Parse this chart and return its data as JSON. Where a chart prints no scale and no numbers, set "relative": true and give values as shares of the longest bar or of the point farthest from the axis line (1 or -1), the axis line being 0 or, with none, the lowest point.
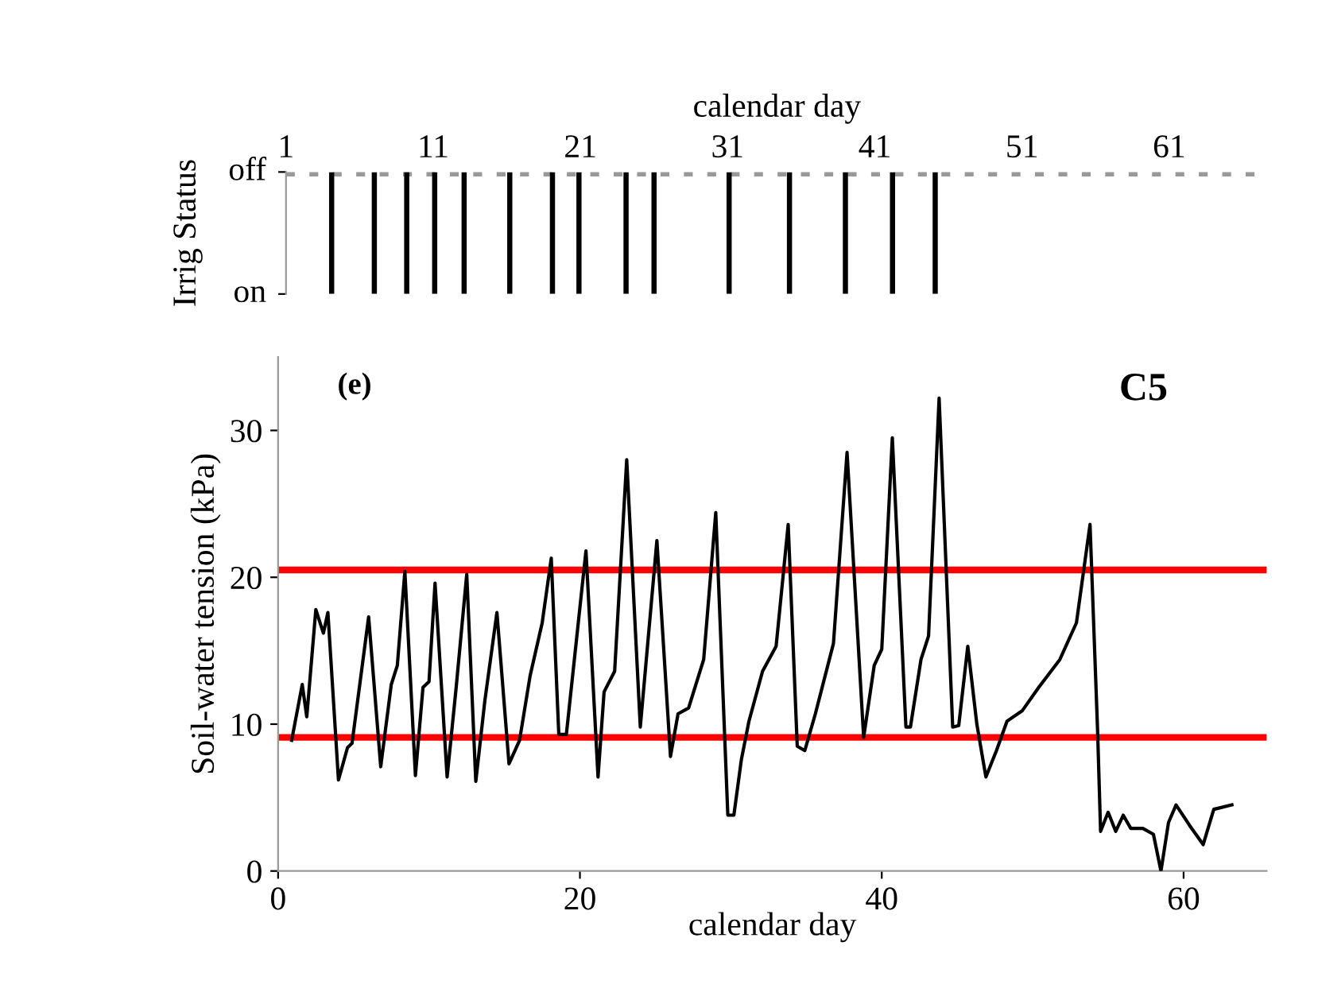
{
  "chart_data": [
    {
      "type": "bar",
      "xlabel": "calendar day",
      "ylabel": "Irrig Status",
      "x": [
        4.1,
        7.0,
        9.2,
        11.1,
        13.1,
        16.2,
        19.1,
        20.9,
        24.1,
        26.0,
        31.1,
        35.2,
        39.0,
        42.2,
        45.1
      ],
      "values": [
        1,
        1,
        1,
        1,
        1,
        1,
        1,
        1,
        1,
        1,
        1,
        1,
        1,
        1,
        1
      ],
      "color": "#000000",
      "xlim": [
        1,
        67.7
      ],
      "xticks": [
        1,
        11,
        21,
        31,
        41,
        51,
        61
      ],
      "relative": true,
      "annotations": [
        "off",
        "on"
      ],
      "ref_lines": [
        {
          "axis": "y",
          "value": 1,
          "color": "#999999",
          "line_style": "dotted"
        }
      ],
      "grid": false,
      "legend": false
    },
    {
      "type": "line",
      "xlabel": "calendar day",
      "ylabel": "Soil-water tension (kPa)",
      "annotations": [
        "(e)",
        "C5"
      ],
      "x": [
        0.9,
        1.6,
        1.9,
        2.5,
        3.0,
        3.3,
        4.0,
        4.6,
        4.9,
        6.0,
        6.8,
        7.5,
        7.9,
        8.4,
        9.1,
        9.6,
        10.0,
        10.4,
        11.2,
        11.8,
        12.5,
        13.1,
        13.7,
        14.5,
        15.3,
        16.0,
        16.7,
        17.5,
        18.1,
        18.6,
        19.1,
        20.4,
        21.2,
        21.6,
        22.3,
        23.1,
        24.0,
        25.1,
        26.0,
        26.5,
        27.2,
        28.2,
        29.0,
        29.8,
        30.2,
        30.7,
        31.2,
        32.1,
        33.0,
        33.8,
        34.4,
        34.9,
        35.6,
        36.8,
        37.7,
        38.8,
        39.5,
        40.0,
        40.7,
        41.6,
        41.9,
        42.6,
        43.1,
        43.8,
        44.7,
        45.1,
        45.7,
        46.3,
        46.9,
        47.6,
        48.3,
        49.3,
        50.4,
        51.8,
        52.9,
        53.8,
        54.3,
        54.5,
        55.0,
        55.5,
        56.0,
        56.5,
        57.3,
        58.0,
        58.5,
        59.0,
        59.5,
        60.4,
        61.3,
        62.0,
        63.2
      ],
      "values": [
        8.9,
        12.7,
        10.5,
        17.8,
        16.2,
        17.6,
        6.2,
        8.4,
        8.7,
        17.3,
        7.1,
        12.7,
        14.0,
        20.4,
        6.5,
        12.5,
        12.9,
        19.6,
        6.4,
        12.5,
        20.2,
        6.1,
        11.6,
        17.6,
        7.3,
        8.9,
        13.3,
        16.9,
        21.3,
        9.3,
        9.3,
        21.8,
        6.4,
        12.2,
        13.6,
        28.0,
        9.8,
        22.5,
        7.8,
        10.7,
        11.1,
        14.4,
        24.4,
        3.8,
        3.8,
        7.6,
        10.2,
        13.6,
        15.3,
        23.6,
        8.5,
        8.2,
        10.7,
        15.5,
        28.5,
        9.1,
        14.0,
        15.1,
        29.5,
        9.8,
        9.8,
        14.4,
        16.0,
        32.2,
        9.8,
        9.9,
        15.3,
        10.0,
        6.4,
        8.2,
        10.2,
        10.9,
        12.5,
        14.4,
        16.9,
        23.6,
        9.6,
        2.7,
        4.0,
        2.7,
        3.8,
        2.9,
        2.9,
        2.5,
        0.0,
        3.3,
        4.5,
        3.1,
        1.8,
        4.2,
        4.5
      ],
      "color": "#000000",
      "marker": "none",
      "line_style": "solid",
      "xlim": [
        0,
        65.5
      ],
      "xticks": [
        0,
        20,
        40,
        60
      ],
      "ylim": [
        0,
        35
      ],
      "yticks": [
        0,
        10,
        20,
        30
      ],
      "ref_lines": [
        {
          "axis": "y",
          "value": 20.5,
          "color": "#ff0000"
        },
        {
          "axis": "y",
          "value": 9.1,
          "color": "#ff0000"
        }
      ],
      "grid": false,
      "legend": false
    }
  ]
}
